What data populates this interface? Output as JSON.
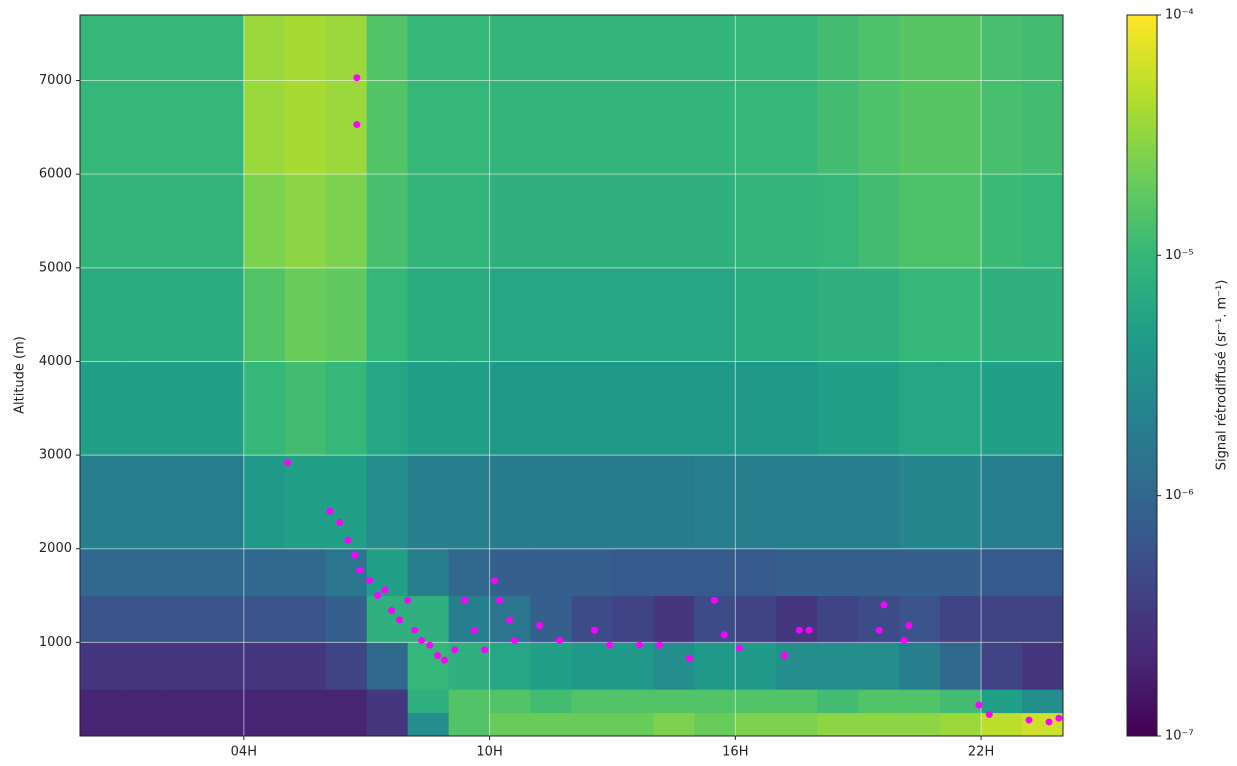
{
  "chart_data": {
    "type": "heatmap",
    "y_label": "Altitude (m)",
    "colorbar_label": "Signal rétrodiffusé  (sr⁻¹. m⁻¹)",
    "xlim": [
      0,
      24
    ],
    "xticks": [
      {
        "value": 4,
        "label": "04H"
      },
      {
        "value": 10,
        "label": "10H"
      },
      {
        "value": 16,
        "label": "16H"
      },
      {
        "value": 22,
        "label": "22H"
      }
    ],
    "ylim": [
      0,
      7700
    ],
    "yticks": [
      1000,
      2000,
      3000,
      4000,
      5000,
      6000,
      7000
    ],
    "grid": true,
    "color_scale": "log",
    "zlim": [
      1e-07,
      0.0001
    ],
    "zticks": [
      {
        "value": 1e-07,
        "label": "10⁻⁷"
      },
      {
        "value": 1e-06,
        "label": "10⁻⁶"
      },
      {
        "value": 1e-05,
        "label": "10⁻⁵"
      },
      {
        "value": 0.0001,
        "label": "10⁻⁴"
      }
    ],
    "colormap": [
      "#440154",
      "#482878",
      "#3e4989",
      "#31688e",
      "#26828e",
      "#1f9e89",
      "#35b779",
      "#6ece58",
      "#b5de2b",
      "#fde725"
    ],
    "xbins": [
      0,
      1,
      2,
      3,
      4,
      5,
      6,
      7,
      8,
      9,
      10,
      11,
      12,
      13,
      14,
      15,
      16,
      17,
      18,
      19,
      20,
      21,
      22,
      23,
      24
    ],
    "ybins": [
      0,
      250,
      500,
      1000,
      1500,
      2000,
      3000,
      4000,
      5000,
      6000,
      7700
    ],
    "z": [
      [
        2e-07,
        2e-07,
        2e-07,
        2e-07,
        2e-07,
        2e-07,
        2e-07,
        3e-07,
        3e-06,
        1.5e-05,
        2e-05,
        2e-05,
        2e-05,
        2e-05,
        2.5e-05,
        2e-05,
        2.5e-05,
        2.5e-05,
        3e-05,
        3e-05,
        3e-05,
        3.5e-05,
        5e-05,
        6e-05
      ],
      [
        2e-07,
        2e-07,
        2e-07,
        2e-07,
        2e-07,
        2e-07,
        2e-07,
        3e-07,
        8e-06,
        1.5e-05,
        1.5e-05,
        1.2e-05,
        1.5e-05,
        1.5e-05,
        1.5e-05,
        1.5e-05,
        1.5e-05,
        1.5e-05,
        1.2e-05,
        1.5e-05,
        1.5e-05,
        1.2e-05,
        5e-06,
        3e-06
      ],
      [
        3e-07,
        3e-07,
        3e-07,
        3e-07,
        3e-07,
        3e-07,
        4e-07,
        1e-06,
        1e-05,
        8e-06,
        6e-06,
        5e-06,
        4e-06,
        4e-06,
        3e-06,
        4e-06,
        4e-06,
        3e-06,
        3e-06,
        3e-06,
        2e-06,
        1e-06,
        4e-07,
        3e-07
      ],
      [
        6e-07,
        6e-07,
        6e-07,
        6e-07,
        6e-07,
        6e-07,
        8e-07,
        8e-06,
        8e-06,
        2e-06,
        1.5e-06,
        8e-07,
        5e-07,
        4e-07,
        3e-07,
        5e-07,
        4e-07,
        3e-07,
        4e-07,
        5e-07,
        6e-07,
        4e-07,
        4e-07,
        4e-07
      ],
      [
        1e-06,
        1e-06,
        1e-06,
        1e-06,
        1e-06,
        1e-06,
        1.5e-06,
        5e-06,
        2e-06,
        1e-06,
        8e-07,
        8e-07,
        8e-07,
        7e-07,
        7e-07,
        7e-07,
        7e-07,
        8e-07,
        8e-07,
        8e-07,
        8e-07,
        8e-07,
        7e-07,
        7e-07
      ],
      [
        2e-06,
        2e-06,
        2e-06,
        2e-06,
        4e-06,
        5e-06,
        5e-06,
        3e-06,
        2e-06,
        2e-06,
        1.8e-06,
        1.8e-06,
        1.8e-06,
        1.8e-06,
        1.8e-06,
        2e-06,
        2e-06,
        2e-06,
        2e-06,
        2e-06,
        2.5e-06,
        2.5e-06,
        2e-06,
        2e-06
      ],
      [
        5e-06,
        5e-06,
        5e-06,
        5e-06,
        1e-05,
        1.2e-05,
        1e-05,
        6e-06,
        5e-06,
        5e-06,
        4e-06,
        4e-06,
        4e-06,
        4e-06,
        4e-06,
        4e-06,
        4e-06,
        4e-06,
        5e-06,
        5e-06,
        6e-06,
        6e-06,
        5e-06,
        5e-06
      ],
      [
        7e-06,
        7e-06,
        7e-06,
        7e-06,
        1.5e-05,
        2e-05,
        1.8e-05,
        1e-05,
        7e-06,
        7e-06,
        6e-06,
        6e-06,
        6e-06,
        6e-06,
        6e-06,
        6e-06,
        7e-06,
        7e-06,
        8e-06,
        8e-06,
        1e-05,
        1e-05,
        8e-06,
        8e-06
      ],
      [
        9e-06,
        9e-06,
        9e-06,
        9e-06,
        2.5e-05,
        3e-05,
        2.5e-05,
        1.3e-05,
        9e-06,
        9e-06,
        8e-06,
        8e-06,
        8e-06,
        8e-06,
        8e-06,
        8e-06,
        9e-06,
        9e-06,
        1e-05,
        1.2e-05,
        1.4e-05,
        1.4e-05,
        1.1e-05,
        1e-05
      ],
      [
        1e-05,
        1e-05,
        1e-05,
        1e-05,
        3.5e-05,
        4e-05,
        3.5e-05,
        1.5e-05,
        1e-05,
        1e-05,
        9e-06,
        9e-06,
        9e-06,
        9e-06,
        9e-06,
        9e-06,
        1e-05,
        1e-05,
        1.2e-05,
        1.4e-05,
        1.6e-05,
        1.6e-05,
        1.3e-05,
        1.2e-05
      ]
    ],
    "points": {
      "color": "#ff00ff",
      "x": [
        6.76,
        6.76,
        5.07,
        6.1,
        6.34,
        6.54,
        6.71,
        6.83,
        7.07,
        7.27,
        7.44,
        7.61,
        7.8,
        8.0,
        8.17,
        8.34,
        8.54,
        8.73,
        8.9,
        9.15,
        9.39,
        9.63,
        9.88,
        10.12,
        10.24,
        10.49,
        10.61,
        11.22,
        11.71,
        12.56,
        12.93,
        13.66,
        14.15,
        14.88,
        15.49,
        15.73,
        16.1,
        17.2,
        17.56,
        17.8,
        19.51,
        19.63,
        20.12,
        20.24,
        21.95,
        22.2,
        23.17,
        23.66,
        23.9
      ],
      "y": [
        7030,
        6530,
        2920,
        2400,
        2280,
        2090,
        1930,
        1770,
        1660,
        1500,
        1560,
        1340,
        1240,
        1450,
        1130,
        1020,
        970,
        860,
        810,
        920,
        1450,
        1130,
        920,
        1660,
        1450,
        1240,
        1020,
        1180,
        1020,
        1130,
        970,
        970,
        970,
        830,
        1450,
        1080,
        940,
        860,
        1130,
        1130,
        1130,
        1400,
        1020,
        1180,
        330,
        230,
        170,
        150,
        190
      ]
    }
  }
}
